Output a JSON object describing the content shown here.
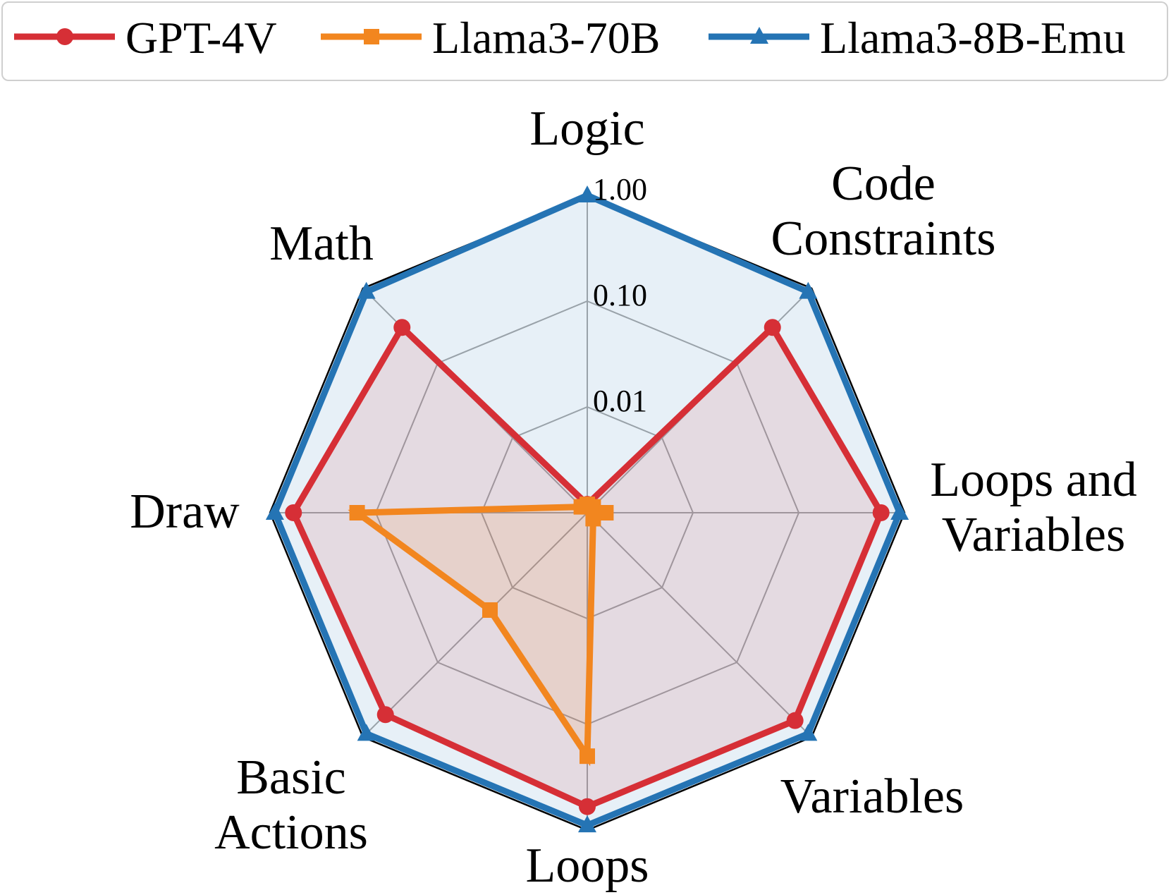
{
  "chart_data": {
    "type": "radar",
    "scale": "log",
    "tick_labels": [
      "0.01",
      "0.10",
      "1.00"
    ],
    "range": [
      0.001,
      1.0
    ],
    "categories": [
      [
        "Logic"
      ],
      [
        "Code",
        "Constraints"
      ],
      [
        "Loops and",
        "Variables"
      ],
      [
        "Variables"
      ],
      [
        "Loops"
      ],
      [
        "Basic",
        "Actions"
      ],
      [
        "Draw"
      ],
      [
        "Math"
      ]
    ],
    "legend_position": "top",
    "series": [
      {
        "name": "GPT-4V",
        "color": "#d62f36",
        "marker": "circle",
        "values": [
          0.0012,
          0.3,
          0.6,
          0.6,
          0.6,
          0.5,
          0.6,
          0.3
        ]
      },
      {
        "name": "Llama3-70B",
        "color": "#f2861f",
        "marker": "square",
        "values": [
          0.0012,
          0.0012,
          0.0015,
          0.0012,
          0.2,
          0.02,
          0.15,
          0.0012
        ]
      },
      {
        "name": "Llama3-8B-Emu",
        "color": "#2574b4",
        "marker": "triangle",
        "values": [
          1.0,
          0.9,
          0.9,
          0.9,
          0.9,
          0.9,
          0.9,
          0.9
        ]
      }
    ]
  }
}
